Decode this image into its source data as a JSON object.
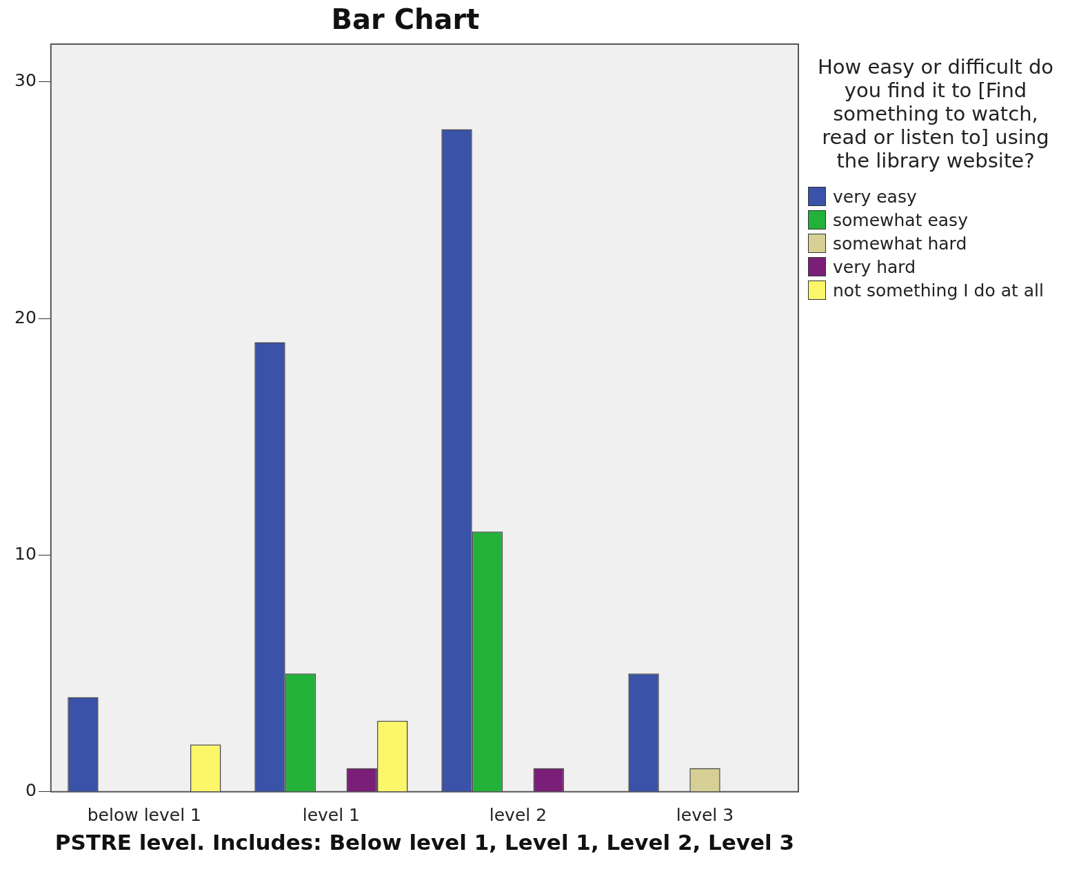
{
  "chart_data": {
    "type": "bar",
    "title": "Bar Chart",
    "xlabel": "PSTRE level. Includes: Below level 1, Level 1, Level 2, Level 3",
    "legend_title": "How easy or difficult do you find it to [Find something to watch, read or listen to] using the library website?",
    "categories": [
      "below level 1",
      "level 1",
      "level 2",
      "level 3"
    ],
    "series": [
      {
        "name": "very easy",
        "color": "#3a52a8",
        "values": [
          4,
          19,
          28,
          5
        ]
      },
      {
        "name": "somewhat easy",
        "color": "#22b23a",
        "values": [
          0,
          5,
          11,
          0
        ]
      },
      {
        "name": "somewhat hard",
        "color": "#d6cf96",
        "values": [
          0,
          0,
          0,
          1
        ]
      },
      {
        "name": "very hard",
        "color": "#7a1f78",
        "values": [
          0,
          1,
          1,
          0
        ]
      },
      {
        "name": "not something I do at all",
        "color": "#fbf66a",
        "values": [
          2,
          3,
          0,
          0
        ]
      }
    ],
    "ylim": [
      0,
      31.6
    ],
    "yticks": [
      0,
      10,
      20,
      30
    ],
    "grid": false,
    "legend": "right"
  }
}
